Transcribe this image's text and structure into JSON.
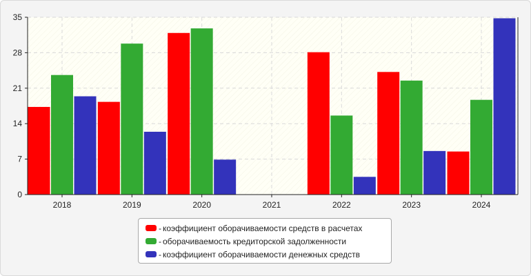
{
  "chart_data": {
    "type": "bar",
    "categories": [
      "2018",
      "2019",
      "2020",
      "2021",
      "2022",
      "2023",
      "2024"
    ],
    "series": [
      {
        "name": "коэффициент оборачиваемости средств в расчетах",
        "color": "#ff0000",
        "values": [
          17.3,
          18.3,
          31.9,
          0,
          28.1,
          24.2,
          8.5
        ]
      },
      {
        "name": "оборачиваемость кредиторской задолженности",
        "color": "#33aa33",
        "values": [
          23.6,
          29.8,
          32.8,
          0,
          15.6,
          22.5,
          18.7
        ]
      },
      {
        "name": "коэффициент оборачиваемости денежных средств",
        "color": "#3333bb",
        "values": [
          19.4,
          12.4,
          6.9,
          0,
          3.5,
          8.6,
          34.8
        ]
      }
    ],
    "title": "",
    "xlabel": "",
    "ylabel": "",
    "ylim": [
      0,
      35
    ],
    "yticks": [
      "0",
      "7",
      "14",
      "21",
      "28",
      "35"
    ],
    "grid": true,
    "legend_position": "bottom-center",
    "legend_dash": "-"
  }
}
